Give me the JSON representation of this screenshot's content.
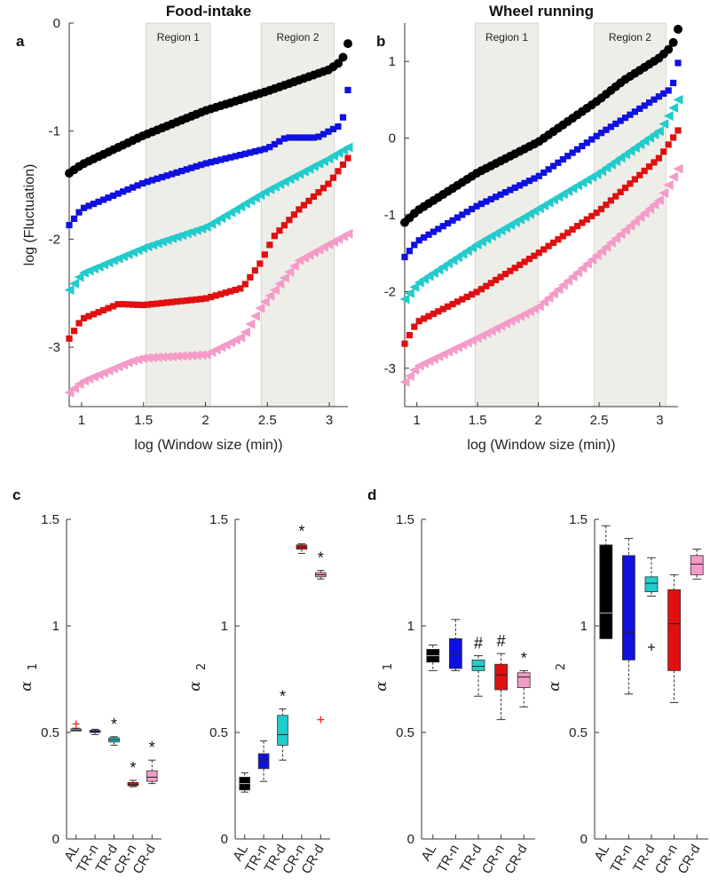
{
  "figure": {
    "panel_a_label": "a",
    "panel_b_label": "b",
    "panel_c_label": "c",
    "panel_d_label": "d"
  },
  "colors": {
    "AL": "#000000",
    "TR-n": "#1010e0",
    "TR-d": "#22cccc",
    "CR-n": "#e01010",
    "CR-d": "#f59bc8",
    "region": "#eeeee9"
  },
  "chart_data": [
    {
      "id": "a",
      "type": "scatter",
      "title": "Food-intake",
      "xlabel": "log (Window size (min))",
      "ylabel": "log (Fluctuation)",
      "xlim": [
        0.9,
        3.15
      ],
      "ylim": [
        -3.55,
        0
      ],
      "xticks": [
        "1",
        "1.5",
        "2",
        "2.5",
        "3"
      ],
      "yticks": [
        "0",
        "-1",
        "-2",
        "-3"
      ],
      "regions": [
        {
          "label": "Region 1",
          "x": [
            1.52,
            2.04
          ]
        },
        {
          "label": "Region 2",
          "x": [
            2.45,
            3.04
          ]
        }
      ],
      "series": [
        {
          "name": "AL",
          "marker": "circle",
          "knots": [
            [
              0.9,
              -1.39
            ],
            [
              1.0,
              -1.31
            ],
            [
              1.5,
              -1.04
            ],
            [
              2.0,
              -0.81
            ],
            [
              2.5,
              -0.63
            ],
            [
              3.0,
              -0.43
            ],
            [
              3.1,
              -0.35
            ],
            [
              3.15,
              -0.19
            ]
          ]
        },
        {
          "name": "TR-n",
          "marker": "square",
          "knots": [
            [
              0.9,
              -1.87
            ],
            [
              1.0,
              -1.72
            ],
            [
              1.5,
              -1.48
            ],
            [
              2.0,
              -1.3
            ],
            [
              2.5,
              -1.16
            ],
            [
              2.65,
              -1.06
            ],
            [
              2.9,
              -1.06
            ],
            [
              3.1,
              -0.94
            ],
            [
              3.15,
              -0.62
            ]
          ]
        },
        {
          "name": "TR-d",
          "marker": "triangle",
          "knots": [
            [
              0.9,
              -2.47
            ],
            [
              1.0,
              -2.32
            ],
            [
              1.5,
              -2.08
            ],
            [
              2.0,
              -1.89
            ],
            [
              2.5,
              -1.55
            ],
            [
              3.0,
              -1.25
            ],
            [
              3.15,
              -1.15
            ]
          ]
        },
        {
          "name": "CR-n",
          "marker": "square",
          "knots": [
            [
              0.9,
              -2.92
            ],
            [
              1.0,
              -2.74
            ],
            [
              1.3,
              -2.6
            ],
            [
              1.5,
              -2.61
            ],
            [
              2.0,
              -2.55
            ],
            [
              2.3,
              -2.45
            ],
            [
              2.45,
              -2.21
            ],
            [
              2.55,
              -1.98
            ],
            [
              2.75,
              -1.73
            ],
            [
              3.0,
              -1.48
            ],
            [
              3.15,
              -1.25
            ]
          ]
        },
        {
          "name": "CR-d",
          "marker": "triangle",
          "knots": [
            [
              0.9,
              -3.42
            ],
            [
              1.0,
              -3.32
            ],
            [
              1.4,
              -3.13
            ],
            [
              1.5,
              -3.1
            ],
            [
              2.0,
              -3.07
            ],
            [
              2.3,
              -2.9
            ],
            [
              2.45,
              -2.62
            ],
            [
              2.75,
              -2.2
            ],
            [
              3.15,
              -1.95
            ]
          ]
        }
      ]
    },
    {
      "id": "b",
      "type": "scatter",
      "title": "Wheel running",
      "xlabel": "log (Window size (min))",
      "ylabel": "",
      "xlim": [
        0.9,
        3.15
      ],
      "ylim": [
        -3.5,
        1.5
      ],
      "xticks": [
        "1",
        "1.5",
        "2",
        "2.5",
        "3"
      ],
      "yticks": [
        "1",
        "0",
        "-1",
        "-2",
        "-3"
      ],
      "regions": [
        {
          "label": "Region 1",
          "x": [
            1.48,
            2.0
          ]
        },
        {
          "label": "Region 2",
          "x": [
            2.46,
            3.05
          ]
        }
      ],
      "series": [
        {
          "name": "AL",
          "marker": "circle",
          "knots": [
            [
              0.9,
              -1.1
            ],
            [
              1.0,
              -0.95
            ],
            [
              1.5,
              -0.45
            ],
            [
              2.0,
              -0.05
            ],
            [
              2.5,
              0.5
            ],
            [
              2.7,
              0.75
            ],
            [
              3.0,
              1.05
            ],
            [
              3.1,
              1.2
            ],
            [
              3.15,
              1.42
            ]
          ]
        },
        {
          "name": "TR-n",
          "marker": "square",
          "knots": [
            [
              0.9,
              -1.55
            ],
            [
              1.0,
              -1.35
            ],
            [
              1.5,
              -0.88
            ],
            [
              2.0,
              -0.5
            ],
            [
              2.5,
              0.05
            ],
            [
              2.8,
              0.35
            ],
            [
              3.1,
              0.65
            ],
            [
              3.15,
              0.98
            ]
          ]
        },
        {
          "name": "TR-d",
          "marker": "triangle",
          "knots": [
            [
              0.9,
              -2.1
            ],
            [
              1.0,
              -1.9
            ],
            [
              1.5,
              -1.38
            ],
            [
              2.0,
              -0.92
            ],
            [
              2.5,
              -0.45
            ],
            [
              3.0,
              0.1
            ],
            [
              3.15,
              0.5
            ]
          ]
        },
        {
          "name": "CR-n",
          "marker": "square",
          "knots": [
            [
              0.9,
              -2.68
            ],
            [
              1.0,
              -2.4
            ],
            [
              1.5,
              -2.0
            ],
            [
              2.0,
              -1.5
            ],
            [
              2.5,
              -0.95
            ],
            [
              3.0,
              -0.25
            ],
            [
              3.15,
              0.1
            ]
          ]
        },
        {
          "name": "CR-d",
          "marker": "triangle",
          "knots": [
            [
              0.9,
              -3.18
            ],
            [
              1.0,
              -2.98
            ],
            [
              1.5,
              -2.6
            ],
            [
              2.0,
              -2.2
            ],
            [
              2.5,
              -1.5
            ],
            [
              3.0,
              -0.8
            ],
            [
              3.15,
              -0.4
            ]
          ]
        }
      ]
    },
    {
      "id": "c1",
      "type": "box",
      "ylabel_symbol": "α",
      "ylabel_sub": "1",
      "ylim": [
        0,
        1.5
      ],
      "yticks": [
        "0",
        "0.5",
        "1",
        "1.5"
      ],
      "categories": [
        "AL",
        "TR-n",
        "TR-d",
        "CR-n",
        "CR-d"
      ],
      "boxes": [
        {
          "min": 0.51,
          "q1": 0.51,
          "median": 0.513,
          "q3": 0.517,
          "max": 0.52,
          "outliers": [
            0.54
          ],
          "mark": ""
        },
        {
          "min": 0.49,
          "q1": 0.5,
          "median": 0.505,
          "q3": 0.51,
          "max": 0.515,
          "outliers": [],
          "mark": ""
        },
        {
          "min": 0.44,
          "q1": 0.455,
          "median": 0.465,
          "q3": 0.475,
          "max": 0.48,
          "outliers": [],
          "mark": "*"
        },
        {
          "min": 0.245,
          "q1": 0.25,
          "median": 0.255,
          "q3": 0.265,
          "max": 0.275,
          "outliers": [],
          "mark": "*"
        },
        {
          "min": 0.26,
          "q1": 0.27,
          "median": 0.29,
          "q3": 0.32,
          "max": 0.37,
          "outliers": [],
          "mark": "*"
        }
      ]
    },
    {
      "id": "c2",
      "type": "box",
      "ylabel_symbol": "α",
      "ylabel_sub": "2",
      "ylim": [
        0,
        1.5
      ],
      "yticks": [
        "0",
        "0.5",
        "1",
        "1.5"
      ],
      "categories": [
        "AL",
        "TR-n",
        "TR-d",
        "CR-n",
        "CR-d"
      ],
      "boxes": [
        {
          "min": 0.22,
          "q1": 0.23,
          "median": 0.26,
          "q3": 0.29,
          "max": 0.31,
          "outliers": [],
          "mark": ""
        },
        {
          "min": 0.27,
          "q1": 0.33,
          "median": 0.37,
          "q3": 0.4,
          "max": 0.46,
          "outliers": [],
          "mark": ""
        },
        {
          "min": 0.37,
          "q1": 0.44,
          "median": 0.49,
          "q3": 0.58,
          "max": 0.61,
          "outliers": [],
          "mark": "*"
        },
        {
          "min": 1.34,
          "q1": 1.36,
          "median": 1.37,
          "q3": 1.38,
          "max": 1.385,
          "outliers": [],
          "mark": "*"
        },
        {
          "min": 1.22,
          "q1": 1.23,
          "median": 1.24,
          "q3": 1.25,
          "max": 1.26,
          "outliers": [
            0.56
          ],
          "mark": "*"
        }
      ]
    },
    {
      "id": "d1",
      "type": "box",
      "ylabel_symbol": "α",
      "ylabel_sub": "1",
      "ylim": [
        0,
        1.5
      ],
      "yticks": [
        "0",
        "0.5",
        "1",
        "1.5"
      ],
      "categories": [
        "AL",
        "TR-n",
        "TR-d",
        "CR-n",
        "CR-d"
      ],
      "boxes": [
        {
          "min": 0.79,
          "q1": 0.83,
          "median": 0.86,
          "q3": 0.89,
          "max": 0.91,
          "outliers": [],
          "mark": ""
        },
        {
          "min": 0.79,
          "q1": 0.8,
          "median": 0.87,
          "q3": 0.94,
          "max": 1.03,
          "outliers": [],
          "mark": ""
        },
        {
          "min": 0.67,
          "q1": 0.79,
          "median": 0.81,
          "q3": 0.84,
          "max": 0.86,
          "outliers": [],
          "mark": "#"
        },
        {
          "min": 0.56,
          "q1": 0.7,
          "median": 0.77,
          "q3": 0.82,
          "max": 0.87,
          "outliers": [],
          "mark": "#"
        },
        {
          "min": 0.62,
          "q1": 0.71,
          "median": 0.76,
          "q3": 0.78,
          "max": 0.79,
          "outliers": [],
          "mark": "*"
        }
      ]
    },
    {
      "id": "d2",
      "type": "box",
      "ylabel_symbol": "α",
      "ylabel_sub": "2",
      "ylim": [
        0,
        1.5
      ],
      "yticks": [
        "0",
        "0.5",
        "1",
        "1.5"
      ],
      "categories": [
        "AL",
        "TR-n",
        "TR-d",
        "CR-n",
        "CR-d"
      ],
      "boxes": [
        {
          "min": 0.94,
          "q1": 0.94,
          "median": 1.06,
          "q3": 1.38,
          "max": 1.47,
          "outliers": [],
          "mark": ""
        },
        {
          "min": 0.68,
          "q1": 0.84,
          "median": 0.97,
          "q3": 1.33,
          "max": 1.41,
          "outliers": [],
          "mark": ""
        },
        {
          "min": 1.14,
          "q1": 1.16,
          "median": 1.2,
          "q3": 1.23,
          "max": 1.32,
          "outliers": [
            0.9
          ],
          "mark": ""
        },
        {
          "min": 0.64,
          "q1": 0.79,
          "median": 1.01,
          "q3": 1.17,
          "max": 1.24,
          "outliers": [],
          "mark": ""
        },
        {
          "min": 1.22,
          "q1": 1.24,
          "median": 1.29,
          "q3": 1.33,
          "max": 1.36,
          "outliers": [],
          "mark": ""
        }
      ]
    }
  ]
}
